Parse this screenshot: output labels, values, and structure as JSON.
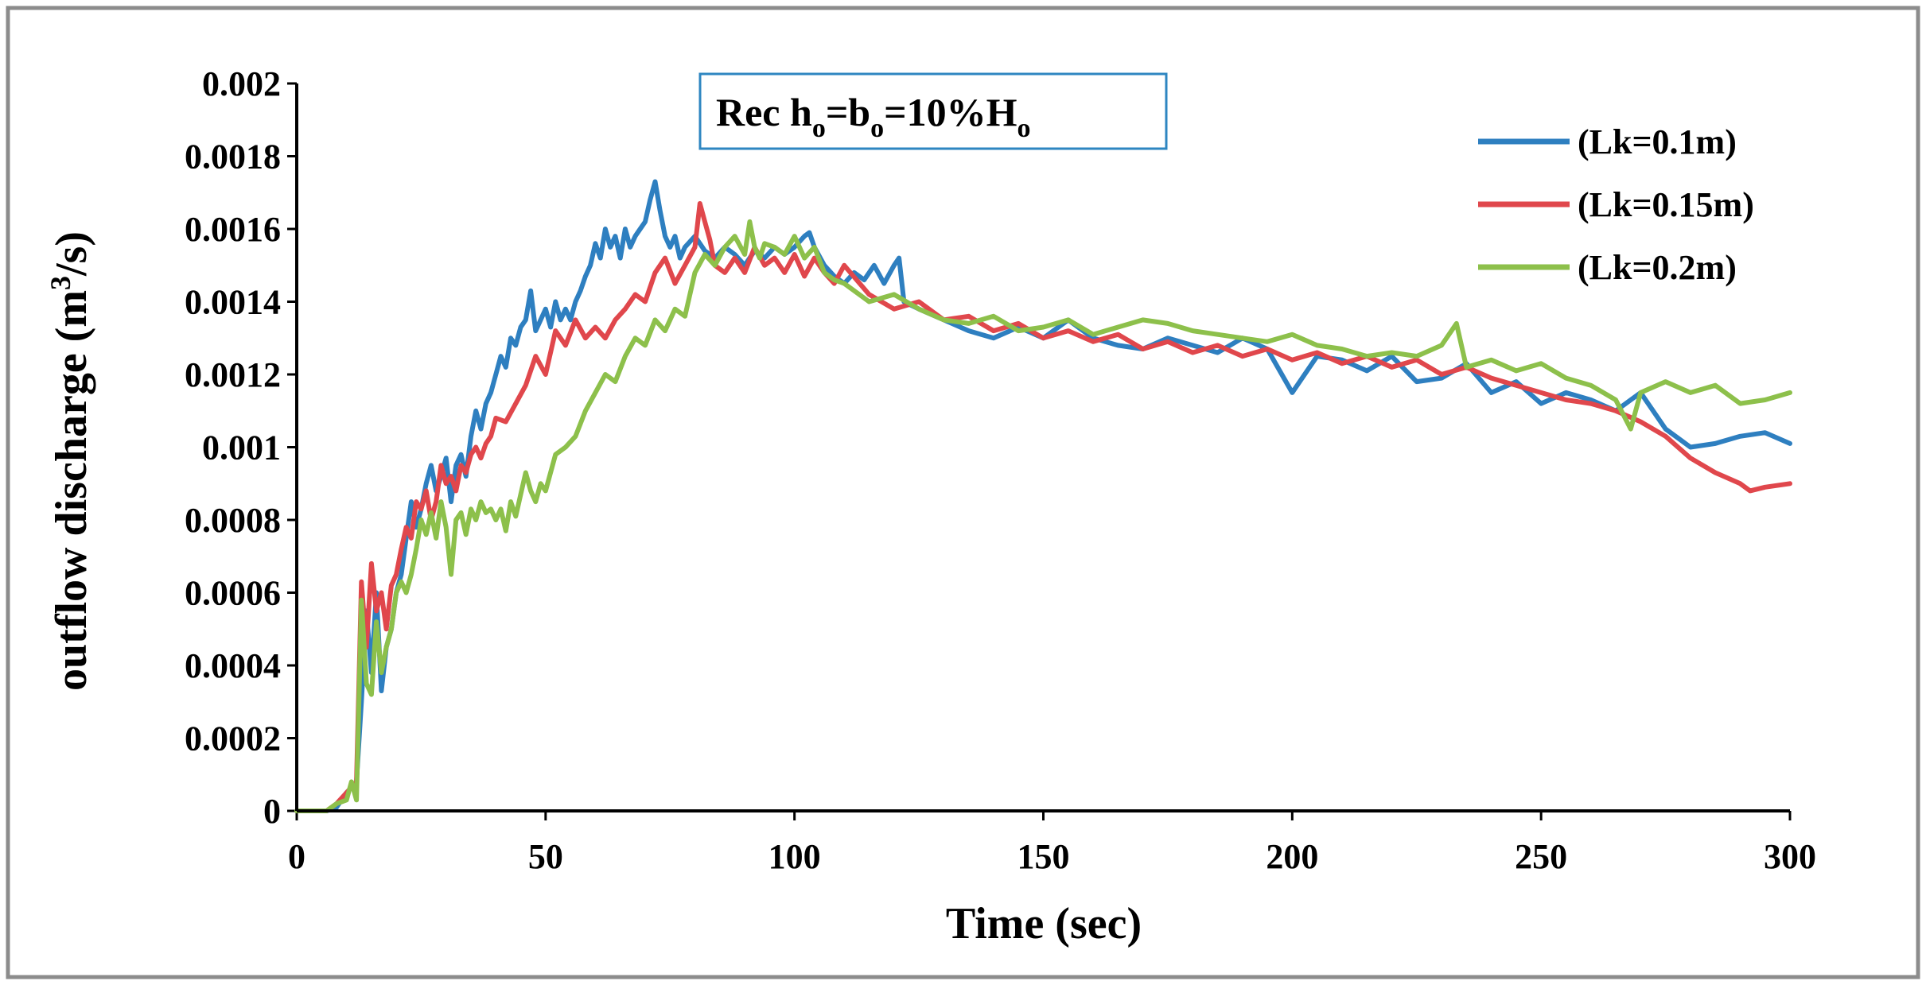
{
  "chart_data": {
    "type": "line",
    "title": "",
    "annotation": {
      "prefix": "Rec h",
      "sub1": "o",
      "mid1": "=b",
      "sub2": "o",
      "mid2": "=10%H",
      "sub3": "o"
    },
    "xlabel": "Time (sec)",
    "ylabel": {
      "prefix": "outflow discharge (m",
      "sup": "3",
      "suffix": "/s)"
    },
    "xlim": [
      0,
      300
    ],
    "ylim": [
      0,
      0.002
    ],
    "x_ticks": [
      0,
      50,
      100,
      150,
      200,
      250,
      300
    ],
    "x_tick_labels": [
      "0",
      "50",
      "100",
      "150",
      "200",
      "250",
      "300"
    ],
    "y_ticks": [
      0,
      0.0002,
      0.0004,
      0.0006,
      0.0008,
      0.001,
      0.0012,
      0.0014,
      0.0016,
      0.0018,
      0.002
    ],
    "y_tick_labels": [
      "0",
      "0.0002",
      "0.0004",
      "0.0006",
      "0.0008",
      "0.001",
      "0.0012",
      "0.0014",
      "0.0016",
      "0.0018",
      "0.002"
    ],
    "grid": false,
    "legend_position": "top-right",
    "series": [
      {
        "name": "(Lk=0.1m)",
        "color": "#2E7FC0",
        "x": [
          0,
          6,
          8,
          10,
          12,
          13,
          14,
          15,
          16,
          17,
          18,
          19,
          20,
          21,
          22,
          23,
          24,
          25,
          26,
          27,
          28,
          29,
          30,
          31,
          32,
          33,
          34,
          35,
          36,
          37,
          38,
          39,
          40,
          41,
          42,
          43,
          44,
          45,
          46,
          47,
          48,
          49,
          50,
          51,
          52,
          53,
          54,
          55,
          56,
          57,
          58,
          59,
          60,
          61,
          62,
          63,
          64,
          65,
          66,
          67,
          68,
          69,
          70,
          71,
          72,
          73,
          74,
          75,
          76,
          77,
          78,
          80,
          82,
          84,
          86,
          88,
          90,
          92,
          94,
          96,
          98,
          100,
          102,
          103,
          104,
          106,
          108,
          110,
          112,
          114,
          116,
          118,
          120,
          121,
          122,
          125,
          130,
          135,
          140,
          145,
          150,
          155,
          160,
          165,
          170,
          175,
          180,
          185,
          190,
          195,
          200,
          205,
          210,
          215,
          220,
          225,
          230,
          235,
          240,
          245,
          250,
          255,
          260,
          265,
          270,
          275,
          278,
          280,
          285,
          290,
          295,
          300
        ],
        "values": [
          0,
          0,
          1e-05,
          5e-05,
          8e-05,
          0.0003,
          0.00055,
          0.00038,
          0.0006,
          0.00033,
          0.00045,
          0.0005,
          0.0006,
          0.00065,
          0.00075,
          0.00085,
          0.00078,
          0.00083,
          0.0009,
          0.00095,
          0.00088,
          0.00092,
          0.00097,
          0.00085,
          0.00095,
          0.00098,
          0.00092,
          0.00103,
          0.0011,
          0.00105,
          0.00112,
          0.00115,
          0.0012,
          0.00125,
          0.00122,
          0.0013,
          0.00128,
          0.00133,
          0.00135,
          0.00143,
          0.00132,
          0.00135,
          0.00138,
          0.00133,
          0.0014,
          0.00135,
          0.00138,
          0.00135,
          0.0014,
          0.00143,
          0.00147,
          0.0015,
          0.00156,
          0.00152,
          0.0016,
          0.00155,
          0.00158,
          0.00152,
          0.0016,
          0.00155,
          0.00158,
          0.0016,
          0.00162,
          0.00168,
          0.00173,
          0.00165,
          0.00158,
          0.00155,
          0.00158,
          0.00152,
          0.00155,
          0.00158,
          0.00154,
          0.00152,
          0.00155,
          0.00153,
          0.0015,
          0.00154,
          0.00152,
          0.00155,
          0.00153,
          0.00155,
          0.00158,
          0.00159,
          0.00155,
          0.0015,
          0.00147,
          0.00145,
          0.00148,
          0.00146,
          0.0015,
          0.00145,
          0.0015,
          0.00152,
          0.0014,
          0.00138,
          0.00135,
          0.00132,
          0.0013,
          0.00133,
          0.0013,
          0.00135,
          0.0013,
          0.00128,
          0.00127,
          0.0013,
          0.00128,
          0.00126,
          0.0013,
          0.00127,
          0.00115,
          0.00125,
          0.00124,
          0.00121,
          0.00125,
          0.00118,
          0.00119,
          0.00123,
          0.00115,
          0.00118,
          0.00112,
          0.00115,
          0.00113,
          0.0011,
          0.00115,
          0.00105,
          0.00102,
          0.001,
          0.00101,
          0.00103,
          0.00104,
          0.00101
        ]
      },
      {
        "name": "(Lk=0.15m)",
        "color": "#E0474C",
        "x": [
          0,
          6,
          8,
          10,
          12,
          13,
          14,
          15,
          16,
          17,
          18,
          19,
          20,
          21,
          22,
          23,
          24,
          25,
          26,
          27,
          28,
          29,
          30,
          31,
          32,
          33,
          34,
          35,
          36,
          37,
          38,
          39,
          40,
          42,
          44,
          46,
          48,
          50,
          52,
          54,
          56,
          58,
          60,
          62,
          64,
          66,
          68,
          70,
          72,
          74,
          76,
          78,
          80,
          81,
          82,
          83,
          84,
          86,
          88,
          90,
          92,
          94,
          96,
          98,
          100,
          102,
          104,
          106,
          108,
          110,
          115,
          120,
          125,
          130,
          135,
          140,
          145,
          150,
          155,
          160,
          165,
          170,
          175,
          180,
          185,
          190,
          195,
          200,
          205,
          210,
          215,
          220,
          225,
          230,
          235,
          240,
          245,
          250,
          255,
          260,
          265,
          270,
          275,
          280,
          285,
          290,
          292,
          295,
          300
        ],
        "values": [
          0,
          0,
          2e-05,
          5e-05,
          8e-05,
          0.00063,
          0.00045,
          0.00068,
          0.00055,
          0.0006,
          0.0005,
          0.00062,
          0.00065,
          0.00072,
          0.00078,
          0.00075,
          0.00085,
          0.00083,
          0.00088,
          0.0008,
          0.00085,
          0.00095,
          0.0009,
          0.00092,
          0.00088,
          0.00095,
          0.00093,
          0.00098,
          0.001,
          0.00097,
          0.00101,
          0.00103,
          0.00108,
          0.00107,
          0.00112,
          0.00117,
          0.00125,
          0.0012,
          0.00132,
          0.00128,
          0.00135,
          0.0013,
          0.00133,
          0.0013,
          0.00135,
          0.00138,
          0.00142,
          0.0014,
          0.00148,
          0.00152,
          0.00145,
          0.0015,
          0.00155,
          0.00167,
          0.00162,
          0.00157,
          0.0015,
          0.00148,
          0.00152,
          0.00148,
          0.00155,
          0.0015,
          0.00152,
          0.00148,
          0.00153,
          0.00147,
          0.00152,
          0.00148,
          0.00145,
          0.0015,
          0.00142,
          0.00138,
          0.0014,
          0.00135,
          0.00136,
          0.00132,
          0.00134,
          0.0013,
          0.00132,
          0.00129,
          0.00131,
          0.00127,
          0.00129,
          0.00126,
          0.00128,
          0.00125,
          0.00127,
          0.00124,
          0.00126,
          0.00123,
          0.00125,
          0.00122,
          0.00124,
          0.0012,
          0.00122,
          0.00119,
          0.00117,
          0.00115,
          0.00113,
          0.00112,
          0.0011,
          0.00107,
          0.00103,
          0.00097,
          0.00093,
          0.0009,
          0.00088,
          0.00089,
          0.0009
        ]
      },
      {
        "name": "(Lk=0.2m)",
        "color": "#8DC04B",
        "x": [
          0,
          6,
          8,
          10,
          11,
          12,
          13,
          14,
          15,
          16,
          17,
          18,
          19,
          20,
          21,
          22,
          23,
          24,
          25,
          26,
          27,
          28,
          29,
          30,
          31,
          32,
          33,
          34,
          35,
          36,
          37,
          38,
          39,
          40,
          41,
          42,
          43,
          44,
          45,
          46,
          47,
          48,
          49,
          50,
          52,
          54,
          56,
          58,
          60,
          62,
          64,
          66,
          68,
          70,
          72,
          74,
          76,
          78,
          80,
          82,
          84,
          86,
          88,
          90,
          91,
          92,
          93,
          94,
          96,
          98,
          100,
          102,
          104,
          106,
          108,
          110,
          115,
          120,
          125,
          130,
          135,
          140,
          145,
          150,
          155,
          160,
          165,
          170,
          175,
          180,
          185,
          190,
          195,
          200,
          205,
          210,
          215,
          220,
          225,
          230,
          233,
          235,
          240,
          245,
          250,
          255,
          260,
          265,
          268,
          270,
          275,
          280,
          285,
          290,
          295,
          300
        ],
        "values": [
          0,
          0,
          2e-05,
          3e-05,
          8e-05,
          3e-05,
          0.00058,
          0.00035,
          0.00032,
          0.00052,
          0.00038,
          0.00045,
          0.0005,
          0.0006,
          0.00063,
          0.0006,
          0.00065,
          0.00072,
          0.0008,
          0.00076,
          0.00082,
          0.00075,
          0.00085,
          0.00078,
          0.00065,
          0.0008,
          0.00082,
          0.00076,
          0.00083,
          0.0008,
          0.00085,
          0.00082,
          0.00083,
          0.0008,
          0.00083,
          0.00077,
          0.00085,
          0.00081,
          0.00087,
          0.00093,
          0.00088,
          0.00085,
          0.0009,
          0.00088,
          0.00098,
          0.001,
          0.00103,
          0.0011,
          0.00115,
          0.0012,
          0.00118,
          0.00125,
          0.0013,
          0.00128,
          0.00135,
          0.00132,
          0.00138,
          0.00136,
          0.00148,
          0.00153,
          0.0015,
          0.00155,
          0.00158,
          0.00153,
          0.00162,
          0.00155,
          0.00152,
          0.00156,
          0.00155,
          0.00153,
          0.00158,
          0.00152,
          0.00155,
          0.00148,
          0.00146,
          0.00145,
          0.0014,
          0.00142,
          0.00138,
          0.00135,
          0.00134,
          0.00136,
          0.00132,
          0.00133,
          0.00135,
          0.00131,
          0.00133,
          0.00135,
          0.00134,
          0.00132,
          0.00131,
          0.0013,
          0.00129,
          0.00131,
          0.00128,
          0.00127,
          0.00125,
          0.00126,
          0.00125,
          0.00128,
          0.00134,
          0.00122,
          0.00124,
          0.00121,
          0.00123,
          0.00119,
          0.00117,
          0.00113,
          0.00105,
          0.00115,
          0.00118,
          0.00115,
          0.00117,
          0.00112,
          0.00113,
          0.00115
        ]
      }
    ]
  }
}
